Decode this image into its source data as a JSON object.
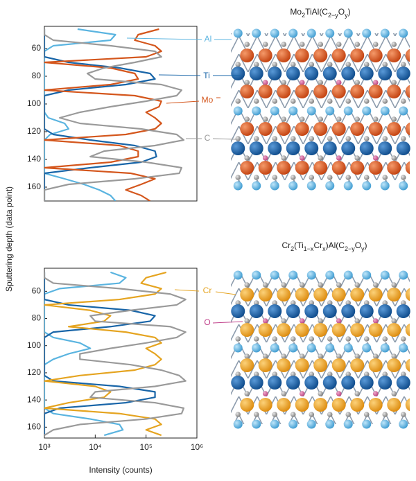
{
  "chart_data": [
    {
      "type": "line",
      "ylabel": "Sputtering depth (data point)",
      "xscale": "log",
      "xlim": [
        1000,
        1000000
      ],
      "ylim": [
        170,
        44
      ],
      "yticks": [
        60,
        80,
        100,
        120,
        140,
        160
      ],
      "x": [
        46,
        50,
        54,
        58,
        62,
        66,
        70,
        74,
        78,
        82,
        86,
        90,
        94,
        98,
        102,
        106,
        110,
        114,
        118,
        122,
        126,
        130,
        134,
        138,
        142,
        146,
        150,
        154,
        158,
        162,
        166,
        170
      ],
      "series": [
        {
          "name": "Al",
          "color": "#5ab4e0",
          "values": [
            4500,
            25000,
            20000,
            1500,
            1000,
            1000,
            1000,
            1000,
            1000,
            1000,
            1000,
            1000,
            1000,
            1000,
            1000,
            1000,
            1200,
            2500,
            3000,
            1300,
            1000,
            1000,
            1000,
            1000,
            1000,
            1000,
            1000,
            2500,
            6000,
            12000,
            20000,
            25000
          ]
        },
        {
          "name": "Ti",
          "color": "#1865a8",
          "values": [
            1000,
            1000,
            1000,
            1000,
            1000,
            1000,
            3000,
            30000,
            120000,
            150000,
            40000,
            3000,
            1000,
            1000,
            1000,
            1000,
            1000,
            1000,
            1000,
            1500,
            8000,
            60000,
            150000,
            160000,
            80000,
            8000,
            1000,
            1000,
            1000,
            1000,
            1000,
            1000
          ]
        },
        {
          "name": "Mo",
          "color": "#d4561c",
          "values": [
            180000,
            70000,
            60000,
            150000,
            200000,
            100000,
            1000,
            20000,
            60000,
            70000,
            20000,
            1000,
            60000,
            200000,
            180000,
            100000,
            150000,
            200000,
            150000,
            40000,
            1000,
            30000,
            70000,
            70000,
            20000,
            1000,
            50000,
            150000,
            80000,
            40000,
            80000,
            120000
          ]
        },
        {
          "name": "C",
          "color": "#9a9a9a",
          "values": [
            1000,
            1000,
            1500,
            20000,
            150000,
            200000,
            60000,
            15000,
            7000,
            10000,
            200000,
            500000,
            400000,
            100000,
            20000,
            5000,
            2000,
            5000,
            80000,
            400000,
            550000,
            150000,
            15000,
            8000,
            100000,
            500000,
            450000,
            60000,
            3000,
            1000,
            1000,
            1000
          ]
        }
      ]
    },
    {
      "type": "line",
      "xlabel": "Intensity (counts)",
      "annotation": "O",
      "xscale": "log",
      "xlim": [
        1000,
        1000000
      ],
      "xticks": [
        {
          "value": 1000,
          "label": "10³"
        },
        {
          "value": 10000,
          "label": "10⁴"
        },
        {
          "value": 100000,
          "label": "10⁵"
        },
        {
          "value": 1000000,
          "label": "10⁶"
        }
      ],
      "ylim": [
        168,
        43
      ],
      "yticks": [
        60,
        80,
        100,
        120,
        140,
        160
      ],
      "x": [
        46,
        50,
        54,
        58,
        62,
        66,
        70,
        74,
        78,
        82,
        86,
        90,
        94,
        98,
        102,
        106,
        110,
        114,
        118,
        122,
        126,
        130,
        134,
        138,
        142,
        146,
        150,
        154,
        158,
        162,
        166
      ],
      "series": [
        {
          "color": "#5ab4e0",
          "values": [
            20000,
            40000,
            30000,
            2000,
            1000,
            1000,
            1000,
            1000,
            1000,
            1000,
            1000,
            1000,
            1500,
            5000,
            8000,
            3000,
            1500,
            1000,
            1000,
            1000,
            1000,
            1000,
            1000,
            1000,
            1000,
            1000,
            1500,
            8000,
            30000,
            35000,
            15000
          ]
        },
        {
          "color": "#1865a8",
          "values": [
            1000,
            1000,
            1000,
            1000,
            1000,
            1000,
            3000,
            50000,
            150000,
            120000,
            20000,
            1500,
            1000,
            1000,
            1000,
            1000,
            1000,
            1000,
            1000,
            1000,
            1500,
            30000,
            150000,
            150000,
            40000,
            2000,
            1000,
            1000,
            1000,
            1000,
            1000
          ]
        },
        {
          "name": "Cr",
          "color": "#e5a420",
          "values": [
            250000,
            100000,
            80000,
            200000,
            150000,
            30000,
            1000,
            8000,
            20000,
            15000,
            3000,
            40000,
            150000,
            200000,
            100000,
            150000,
            200000,
            150000,
            60000,
            5000,
            1000,
            10000,
            20000,
            15000,
            3000,
            1000,
            30000,
            150000,
            200000,
            100000,
            200000
          ]
        },
        {
          "color": "#9a9a9a",
          "values": [
            1000,
            1000,
            1500,
            30000,
            300000,
            600000,
            400000,
            50000,
            8000,
            10000,
            300000,
            600000,
            400000,
            100000,
            20000,
            5000,
            5000,
            50000,
            200000,
            450000,
            600000,
            150000,
            10000,
            8000,
            150000,
            550000,
            500000,
            100000,
            5000,
            1500,
            1000
          ]
        }
      ]
    }
  ],
  "structures": [
    {
      "title_parts": [
        "Mo",
        "2",
        "TiAl(C",
        "2−y",
        "O",
        "y",
        ")"
      ]
    },
    {
      "title_parts": [
        "Cr",
        "2",
        "(Ti",
        "1−x",
        "Cr",
        "x",
        ")Al(C",
        "2−y",
        "O",
        "y",
        ")"
      ]
    }
  ]
}
